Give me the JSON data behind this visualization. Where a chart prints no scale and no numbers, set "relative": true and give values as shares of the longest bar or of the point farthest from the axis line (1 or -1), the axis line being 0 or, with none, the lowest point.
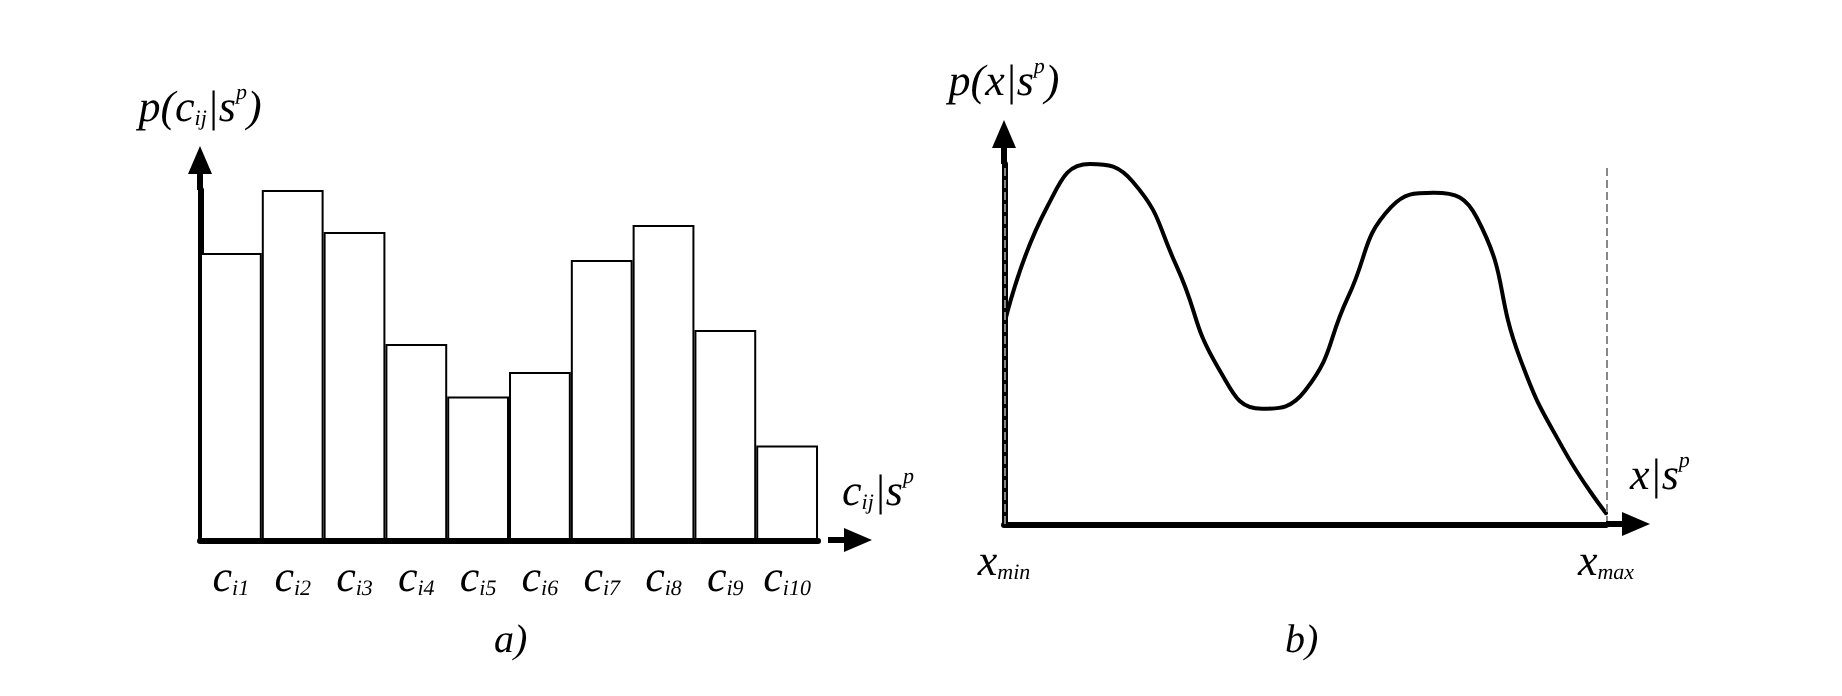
{
  "chart_data": [
    {
      "type": "bar",
      "relative": true,
      "ylabel": "p(c$_{ij}$|s$^{p}$)",
      "xlabel": "c$_{ij}$|s$^{p}$",
      "categories": [
        "c$_{i1}$",
        "c$_{i2}$",
        "c$_{i3}$",
        "c$_{i4}$",
        "c$_{i5}$",
        "c$_{i6}$",
        "c$_{i7}$",
        "c$_{i8}$",
        "c$_{i9}$",
        "c$_{i10}$"
      ],
      "values": [
        0.82,
        1,
        0.88,
        0.56,
        0.41,
        0.48,
        0.8,
        0.9,
        0.6,
        0.27
      ],
      "color": "#ffffff",
      "annotations": [
        "a)"
      ]
    },
    {
      "type": "line",
      "relative": true,
      "ylabel": "p(x|s$^{p}$)",
      "xlabel": "x|s$^{p}$",
      "categories": [
        "x$_{min}$",
        null,
        null,
        null,
        null,
        null,
        null,
        null,
        null,
        null,
        null,
        null,
        null,
        null,
        "x$_{max}$"
      ],
      "values": [
        0.55,
        0.88,
        1,
        0.95,
        0.72,
        0.43,
        0.32,
        0.37,
        0.63,
        0.88,
        0.92,
        0.85,
        0.46,
        0.21,
        0.03
      ],
      "color": "#000000",
      "marker": "none",
      "ref_lines": [
        {
          "axis": "x",
          "value": "x$_{min}$",
          "color": "#888888",
          "line_style": "dashed"
        },
        {
          "axis": "x",
          "value": "x$_{max}$",
          "color": "#888888",
          "line_style": "dashed"
        }
      ],
      "annotations": [
        "b)"
      ]
    }
  ]
}
